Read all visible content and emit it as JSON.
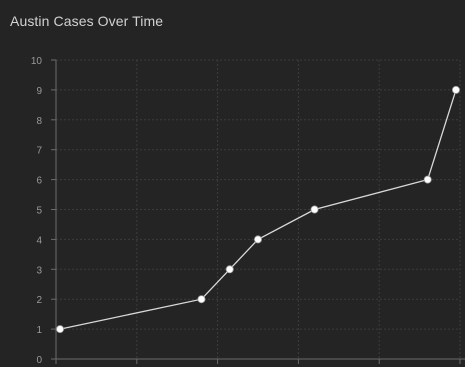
{
  "widget": {
    "title": "Austin Cases Over Time"
  },
  "colors": {
    "panel_background": "#242424",
    "title_text": "#d2d2d2",
    "tick_text": "#9a9a9a",
    "axis_line": "#6b6b6b",
    "grid_line": "#3c3c3c",
    "series_line": "#d8d8d8",
    "marker_fill": "#ffffff"
  },
  "chart_data": {
    "type": "line",
    "title": "Austin Cases Over Time",
    "xlabel": "",
    "ylabel": "",
    "ylim": [
      0,
      10
    ],
    "yticks": [
      0,
      1,
      2,
      3,
      4,
      5,
      6,
      7,
      8,
      9,
      10
    ],
    "x_tick_labels": [],
    "grid": true,
    "series": [
      {
        "x": [
          0.05,
          1.8,
          2.15,
          2.5,
          3.2,
          4.6,
          4.95
        ],
        "values": [
          1,
          2,
          3,
          4,
          5,
          6,
          9
        ]
      }
    ],
    "xlim": [
      0,
      5
    ]
  }
}
